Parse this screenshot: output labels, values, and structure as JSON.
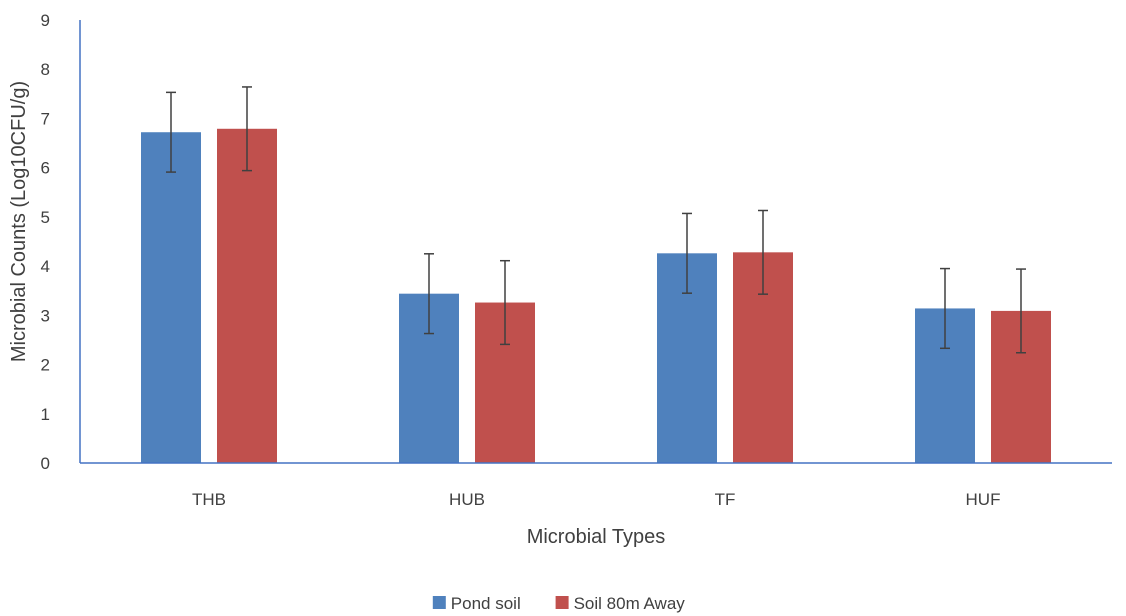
{
  "chart_data": {
    "type": "bar",
    "title": "",
    "xlabel": "Microbial Types",
    "ylabel": "Microbial Counts (Log10CFU/g)",
    "ylim": [
      0,
      9
    ],
    "yticks": [
      0,
      1,
      2,
      3,
      4,
      5,
      6,
      7,
      8,
      9
    ],
    "grid": false,
    "legend_position": "bottom",
    "categories": [
      "THB",
      "HUB",
      "TF",
      "HUF"
    ],
    "series": [
      {
        "name": "Pond soil",
        "color": "#4F81BD",
        "values": [
          6.72,
          3.44,
          4.26,
          3.14
        ],
        "error": [
          0.81,
          0.81,
          0.81,
          0.81
        ]
      },
      {
        "name": "Soil 80m Away",
        "color": "#C0504D",
        "values": [
          6.79,
          3.26,
          4.28,
          3.09
        ],
        "error": [
          0.85,
          0.85,
          0.85,
          0.85
        ]
      }
    ]
  }
}
